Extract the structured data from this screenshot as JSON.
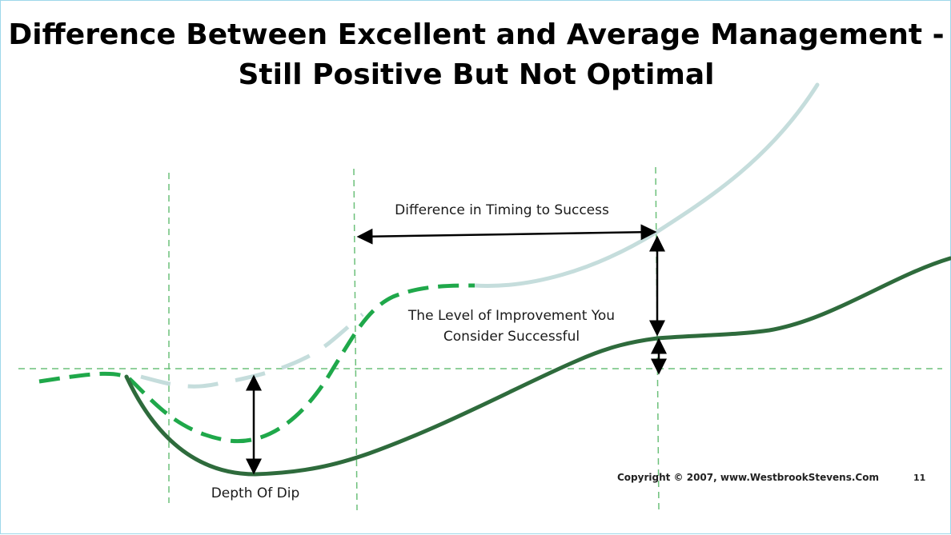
{
  "title": {
    "line1": "Difference Between Excellent and Average Management -",
    "line2": "Still Positive But Not Optimal"
  },
  "annotations": {
    "timing": "Difference in Timing to Success",
    "level_line1": "The Level of Improvement You",
    "level_line2": "Consider Successful",
    "depth": "Depth Of Dip"
  },
  "footer": {
    "copyright": "Copyright © 2007, www.WestbrookStevens.Com",
    "page_number": "11"
  },
  "colors": {
    "excellent_curve": "#c5dddc",
    "transition_curve": "#1fa84a",
    "average_curve": "#2e6b3c",
    "guide_lines": "#6cc07a",
    "arrows": "#000000",
    "border": "#9ed8ea"
  }
}
